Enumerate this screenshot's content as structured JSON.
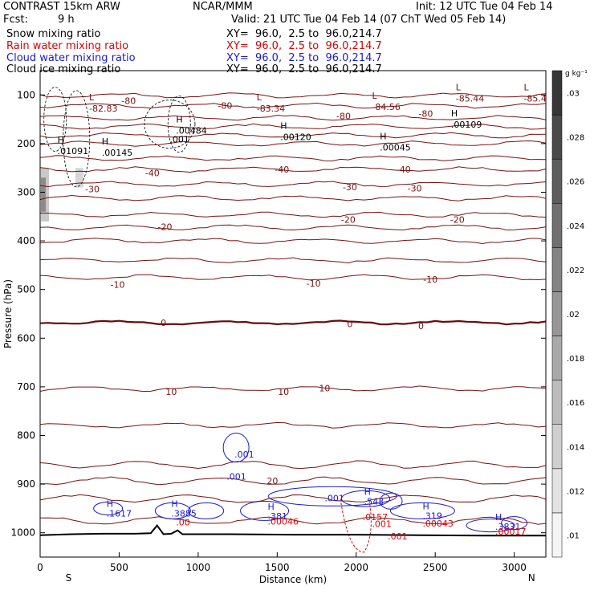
{
  "header": {
    "model": "CONTRAST 15km ARW",
    "org": "NCAR/MMM",
    "init": "Init: 12 UTC Tue 04 Feb 14",
    "fcst_label": "Fcst:",
    "fcst_value": "9 h",
    "valid": "Valid: 21 UTC Tue 04 Feb 14 (07 ChT Wed 05 Feb 14)",
    "fields": [
      {
        "name": "Snow mixing ratio",
        "xy": "XY=  96.0,  2.5 to  96.0,214.7",
        "color": "#000000"
      },
      {
        "name": "Rain water mixing ratio",
        "xy": "XY=  96.0,  2.5 to  96.0,214.7",
        "color": "#e00000"
      },
      {
        "name": "Cloud water mixing ratio",
        "xy": "XY=  96.0,  2.5 to  96.0,214.7",
        "color": "#1a1ad0"
      },
      {
        "name": "Cloud ice mixing ratio",
        "xy": "XY=  96.0,  2.5 to  96.0,214.7",
        "color": "#000000"
      }
    ]
  },
  "colors": {
    "temp": "#7a1010",
    "zero": "#6a0a0a",
    "cloud": "#1a1ad0",
    "rain": "#e00000",
    "ice": "#000000",
    "terrain": "#000000"
  },
  "chart_data": {
    "type": "cross-section",
    "xlabel": "Distance (km)",
    "ylabel": "Pressure (hPa)",
    "xlim": [
      0,
      3200
    ],
    "ylim": [
      1050,
      50
    ],
    "xticks": [
      0,
      500,
      1000,
      1500,
      2000,
      2500,
      3000
    ],
    "yticks": [
      100,
      200,
      300,
      400,
      500,
      600,
      700,
      800,
      900,
      1000
    ],
    "ends": {
      "left": "S",
      "right": "N"
    },
    "colorbar": {
      "unit": "g kg⁻¹",
      "levels": [
        ".01",
        ".012",
        ".014",
        ".016",
        ".018",
        ".02",
        ".022",
        ".024",
        ".026",
        ".028",
        ".03"
      ]
    },
    "temperature_isotherms": [
      {
        "label": "-80",
        "p": 101
      },
      {
        "label": "-80",
        "p": 122
      },
      {
        "label": "",
        "p": 147
      },
      {
        "label": "",
        "p": 165
      },
      {
        "label": "",
        "p": 183
      },
      {
        "label": "",
        "p": 200
      },
      {
        "label": "-40",
        "p": 230
      },
      {
        "label": "",
        "p": 253
      },
      {
        "label": "-30",
        "p": 283
      },
      {
        "label": "",
        "p": 312
      },
      {
        "label": "-20",
        "p": 346
      },
      {
        "label": "",
        "p": 372
      },
      {
        "label": "",
        "p": 400
      },
      {
        "label": "-10",
        "p": 440
      },
      {
        "label": "",
        "p": 475
      },
      {
        "label": "0",
        "p": 568
      },
      {
        "label": "10",
        "p": 704
      },
      {
        "label": "",
        "p": 779
      },
      {
        "label": "",
        "p": 860
      },
      {
        "label": "20",
        "p": 893
      },
      {
        "label": "",
        "p": 930
      },
      {
        "label": "",
        "p": 975
      }
    ],
    "labels_temperature": [
      {
        "text": "-80",
        "x": 560,
        "p": 112
      },
      {
        "text": "-80",
        "x": 1170,
        "p": 122
      },
      {
        "text": "-80",
        "x": 1920,
        "p": 143
      },
      {
        "text": "-80",
        "x": 2440,
        "p": 138
      },
      {
        "text": "-40",
        "x": 710,
        "p": 260
      },
      {
        "text": "-40",
        "x": 1530,
        "p": 253
      },
      {
        "text": "-40",
        "x": 2300,
        "p": 253
      },
      {
        "text": "-30",
        "x": 330,
        "p": 293
      },
      {
        "text": "-30",
        "x": 1960,
        "p": 289
      },
      {
        "text": "-30",
        "x": 2370,
        "p": 292
      },
      {
        "text": "-20",
        "x": 790,
        "p": 371
      },
      {
        "text": "-20",
        "x": 1950,
        "p": 356
      },
      {
        "text": "-20",
        "x": 2640,
        "p": 356
      },
      {
        "text": "-10",
        "x": 490,
        "p": 490
      },
      {
        "text": "-10",
        "x": 1730,
        "p": 487
      },
      {
        "text": "-10",
        "x": 2470,
        "p": 479
      },
      {
        "text": "0",
        "x": 780,
        "p": 568
      },
      {
        "text": "0",
        "x": 1960,
        "p": 571
      },
      {
        "text": "0",
        "x": 2410,
        "p": 575
      },
      {
        "text": "10",
        "x": 830,
        "p": 710
      },
      {
        "text": "10",
        "x": 1540,
        "p": 710
      },
      {
        "text": "10",
        "x": 1800,
        "p": 703
      },
      {
        "text": "20",
        "x": 1470,
        "p": 893
      }
    ],
    "extrema": [
      {
        "kind": "L",
        "value": "-82.83",
        "x": 310,
        "p": 124
      },
      {
        "kind": "L",
        "value": "-83.34",
        "x": 1370,
        "p": 124
      },
      {
        "kind": "L",
        "value": "-84.56",
        "x": 2100,
        "p": 121
      },
      {
        "kind": "L",
        "value": "-85.44",
        "x": 2630,
        "p": 104
      },
      {
        "kind": "L",
        "value": "-85.4",
        "x": 3060,
        "p": 104
      },
      {
        "kind": "H",
        "value": ".00484",
        "x": 860,
        "p": 170
      },
      {
        "kind": "H",
        "value": ".00120",
        "x": 1520,
        "p": 183
      },
      {
        "kind": "H",
        "value": ".00109",
        "x": 2600,
        "p": 157
      },
      {
        "kind": "H",
        "value": ".01091",
        "x": 110,
        "p": 212
      },
      {
        "kind": "H",
        "value": ".00145",
        "x": 390,
        "p": 215
      },
      {
        "kind": "H",
        "value": ".00045",
        "x": 2150,
        "p": 204
      }
    ],
    "snow_labels": [
      {
        "text": ".001",
        "x": 820,
        "p": 198
      }
    ],
    "cloud_water_extrema": [
      {
        "kind": "H",
        "value": ".1617",
        "x": 420,
        "p": 960
      },
      {
        "kind": "H",
        "value": ".3885",
        "x": 830,
        "p": 960
      },
      {
        "kind": "H",
        "value": ".381",
        "x": 1440,
        "p": 966
      },
      {
        "kind": "H",
        "value": ".543",
        "x": 2050,
        "p": 935
      },
      {
        "kind": "H",
        "value": ".319",
        "x": 2420,
        "p": 965
      },
      {
        "kind": "H",
        "value": ".3831",
        "x": 2880,
        "p": 987
      }
    ],
    "cloud_water_labels": [
      {
        "text": ".001",
        "x": 1180,
        "p": 891
      },
      {
        "text": ".001",
        "x": 1800,
        "p": 935
      },
      {
        "text": ".001",
        "x": 1230,
        "p": 845
      }
    ],
    "rain_extrema": [
      {
        "value": ".00046",
        "x": 1440,
        "p": 983
      },
      {
        "value": ".0157",
        "x": 2040,
        "p": 974
      },
      {
        "value": ".001",
        "x": 2100,
        "p": 988
      },
      {
        "value": ".00043",
        "x": 2420,
        "p": 987
      },
      {
        "value": ".00017",
        "x": 2880,
        "p": 1004
      },
      {
        "value": ".001",
        "x": 2200,
        "p": 1014
      },
      {
        "value": ".00",
        "x": 860,
        "p": 985
      }
    ],
    "terrain_profile": [
      [
        0,
        1005
      ],
      [
        200,
        1003
      ],
      [
        400,
        1002
      ],
      [
        600,
        1002
      ],
      [
        700,
        1001
      ],
      [
        740,
        985
      ],
      [
        780,
        1003
      ],
      [
        830,
        1002
      ],
      [
        870,
        995
      ],
      [
        900,
        1003
      ],
      [
        1200,
        1003
      ],
      [
        1600,
        1004
      ],
      [
        2000,
        1004
      ],
      [
        2400,
        1005
      ],
      [
        2800,
        1006
      ],
      [
        3200,
        1006
      ]
    ]
  }
}
